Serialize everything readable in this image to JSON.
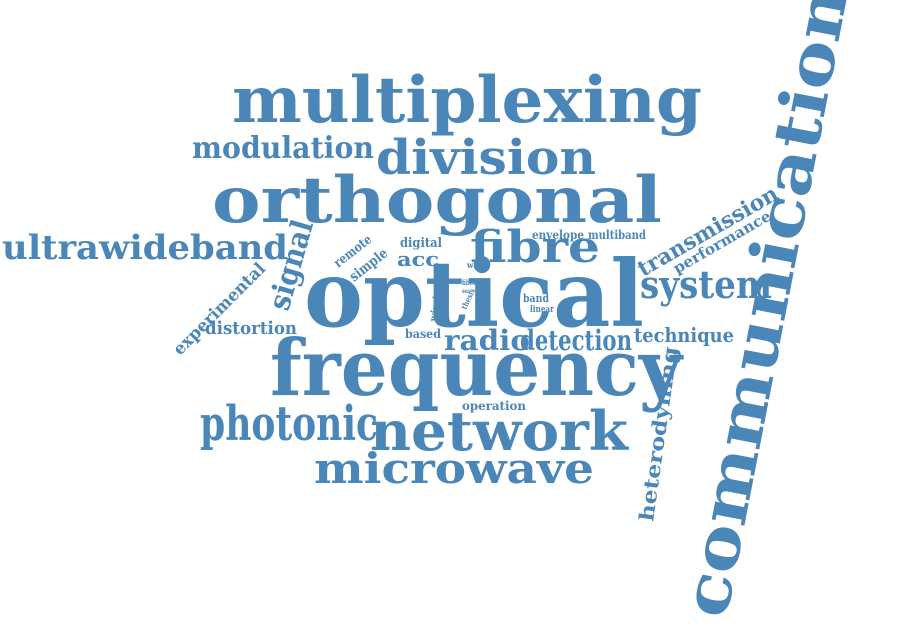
{
  "colors": {
    "word": "#4b86b8",
    "background": "#ffffff"
  },
  "words": {
    "communication": "communication",
    "multiplexing": "multiplexing",
    "orthogonal": "orthogonal",
    "optical": "optical",
    "frequency": "frequency",
    "division": "division",
    "modulation": "modulation",
    "ultrawideband": "ultrawideband",
    "fibre": "fibre",
    "system": "system",
    "transmission": "transmission",
    "performance": "performance",
    "signal": "signal",
    "experimental": "experimental",
    "distortion": "distortion",
    "remote": "remote",
    "simple": "simple",
    "digital": "digital",
    "acc": "acc",
    "envelope": "envelope",
    "multiband": "multiband",
    "wave": "wave",
    "wireless": "wireless",
    "fiber": "fiber",
    "sea": "sea",
    "thesis": "thesis",
    "band": "band",
    "linear": "linear",
    "based": "based",
    "radio": "radio",
    "detection": "detection",
    "technique": "technique",
    "photonic": "photonic",
    "network": "network",
    "microwave": "microwave",
    "operation": "operation",
    "heterodyning": "heterodyning"
  }
}
